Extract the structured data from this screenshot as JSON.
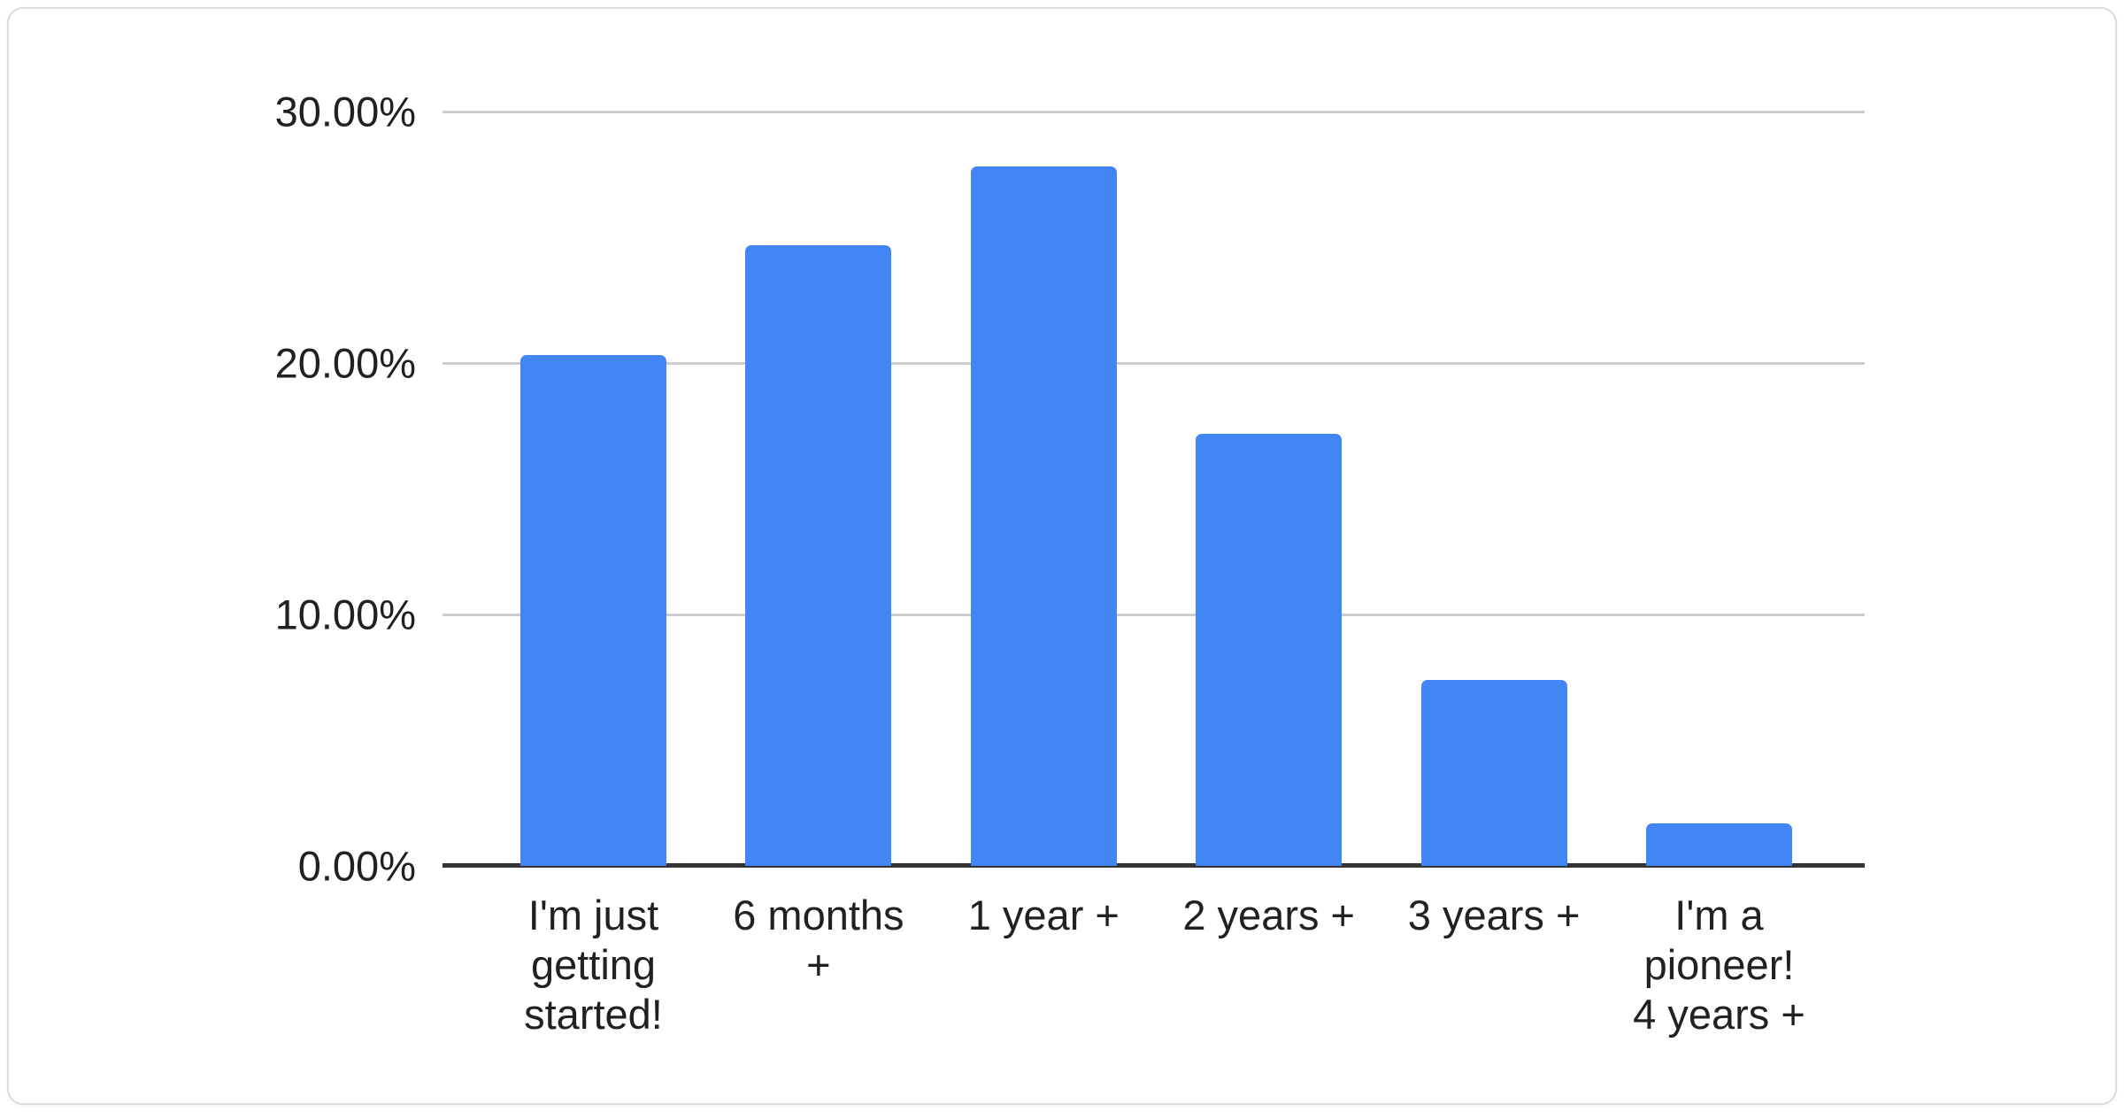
{
  "chart_data": {
    "type": "bar",
    "title": "",
    "xlabel": "",
    "ylabel": "",
    "categories": [
      "I'm just getting started!",
      "6 months +",
      "1 year +",
      "2 years +",
      "3 years +",
      "I'm a pioneer! 4 years +"
    ],
    "category_label_lines": [
      [
        "I'm just",
        "getting",
        "started!"
      ],
      [
        "6 months",
        "+"
      ],
      [
        "1 year +"
      ],
      [
        "2 years +"
      ],
      [
        "3 years +"
      ],
      [
        "I'm a",
        "pioneer!",
        "4 years +"
      ]
    ],
    "values": [
      20.3,
      24.7,
      27.8,
      17.2,
      7.4,
      1.7
    ],
    "value_unit": "%",
    "ylim": [
      0,
      30
    ],
    "y_ticks": [
      {
        "value": 0,
        "label": "0.00%"
      },
      {
        "value": 10,
        "label": "10.00%"
      },
      {
        "value": 20,
        "label": "20.00%"
      },
      {
        "value": 30,
        "label": "30.00%"
      }
    ],
    "grid": true,
    "legend": "none",
    "colors": {
      "bar": "#4285f4",
      "gridline": "#cccccc",
      "axis": "#333333",
      "label": "#212121",
      "card_background": "#ffffff",
      "card_border": "#d9dce1",
      "page_background": "#ffffff"
    }
  }
}
